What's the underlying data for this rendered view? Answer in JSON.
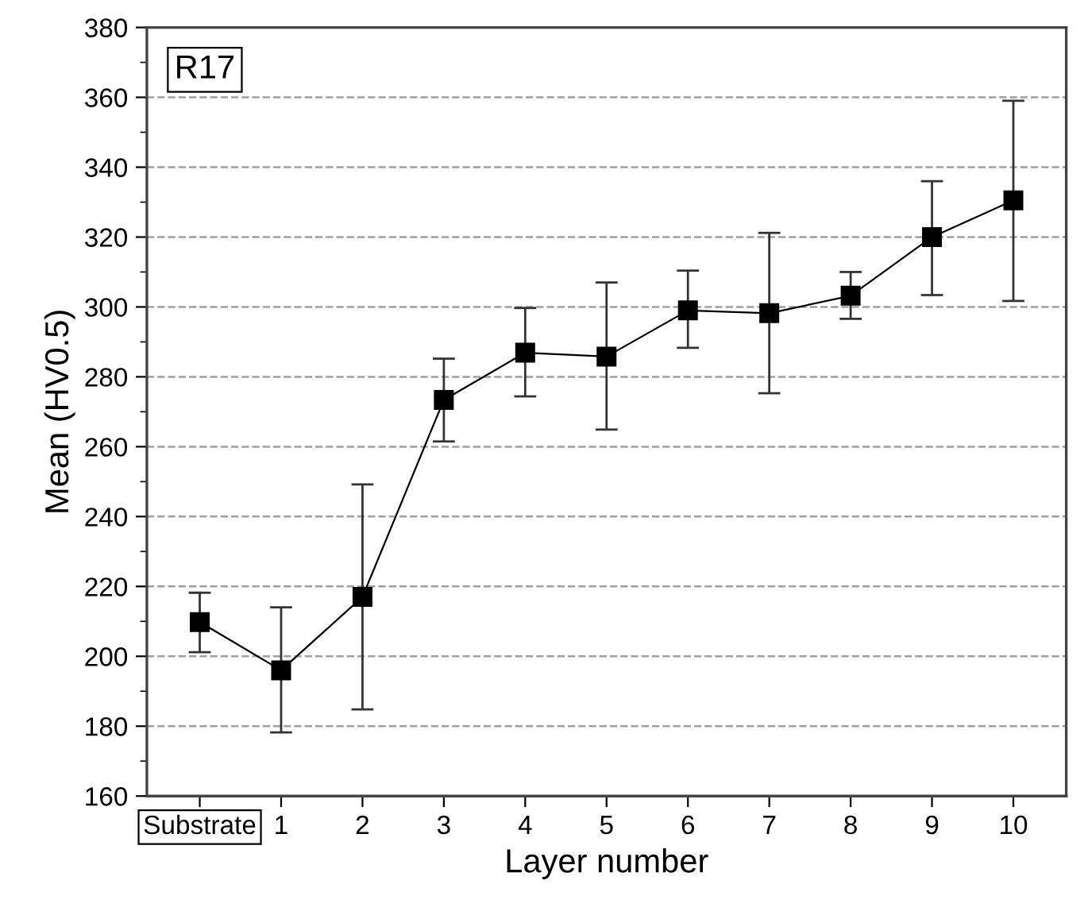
{
  "chart_data": {
    "type": "line",
    "xlabel": "Layer number",
    "ylabel": "Mean (HV0.5)",
    "annotations": [
      "R17"
    ],
    "categories": [
      "Substrate",
      "1",
      "2",
      "3",
      "4",
      "5",
      "6",
      "7",
      "8",
      "9",
      "10"
    ],
    "series": [
      {
        "color": "#000000",
        "values": [
          209.8,
          196,
          217,
          273.4,
          286.9,
          285.8,
          299,
          298.2,
          303.2,
          320,
          330.5
        ],
        "errors": [
          [
            201.2,
            218.2
          ],
          [
            178.2,
            214
          ],
          [
            184.8,
            249.2
          ],
          [
            261.5,
            285.2
          ],
          [
            274.4,
            299.7
          ],
          [
            264.9,
            307
          ],
          [
            288.3,
            310.4
          ],
          [
            275.3,
            321.2
          ],
          [
            296.6,
            310
          ],
          [
            303.4,
            336
          ],
          [
            301.7,
            359
          ]
        ]
      }
    ],
    "ylim": [
      160,
      380
    ],
    "yticks": [
      160,
      180,
      200,
      220,
      240,
      260,
      280,
      300,
      320,
      340,
      360,
      380
    ],
    "grid": "y",
    "marker": "square",
    "line_style": "solid"
  }
}
